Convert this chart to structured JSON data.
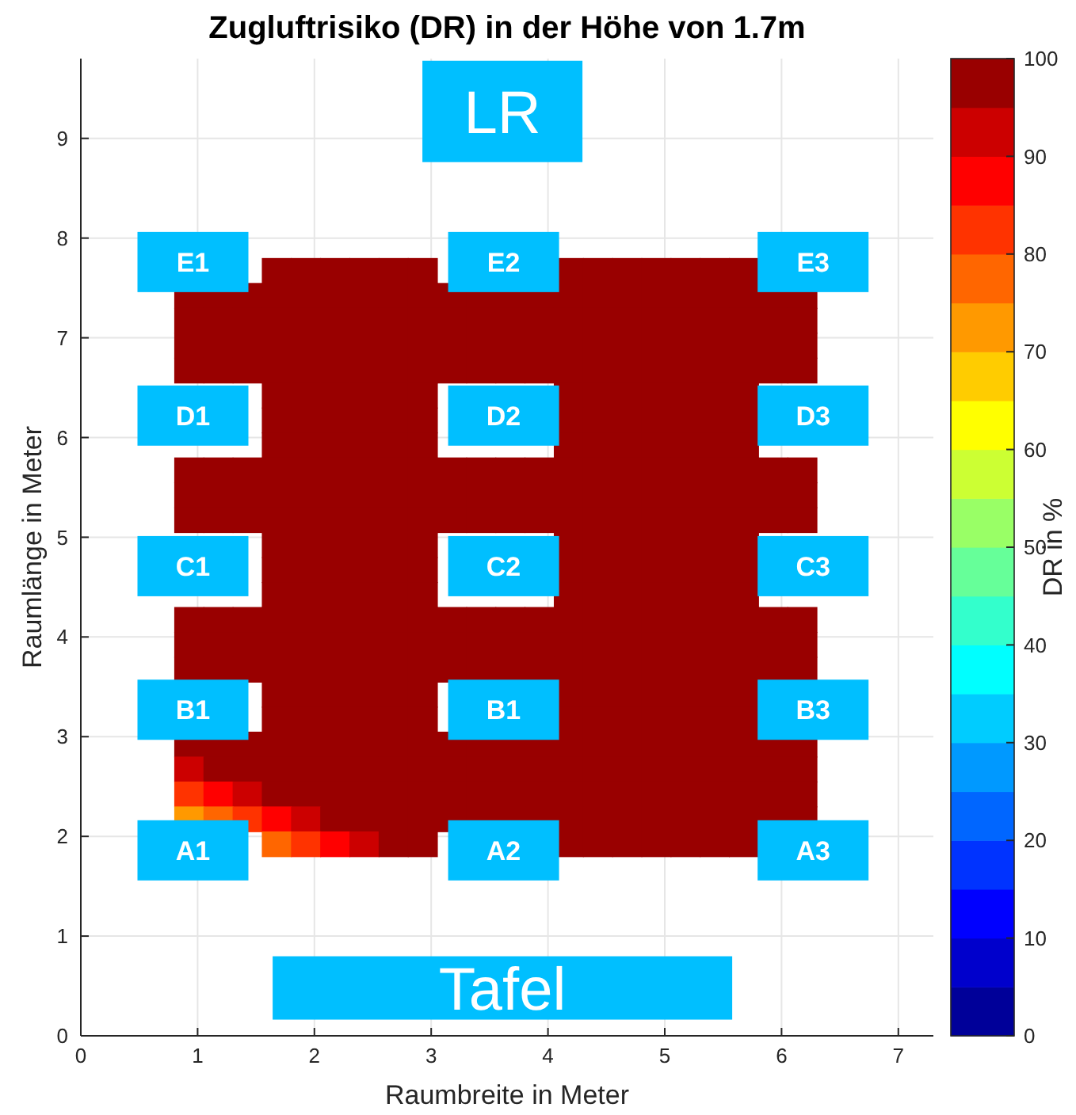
{
  "chart_data": {
    "type": "heatmap",
    "title": "Zugluftrisiko (DR) in der Höhe von 1.7m",
    "xlabel": "Raumbreite in Meter",
    "ylabel": "Raumlänge in Meter",
    "clabel": "DR in %",
    "x": [
      0.925,
      1.175,
      1.425,
      1.675,
      1.925,
      2.175,
      2.425,
      2.675,
      2.925,
      3.175,
      3.425,
      3.675,
      3.925,
      4.175,
      4.425,
      4.675,
      4.925,
      5.175,
      5.425,
      5.675,
      5.925,
      6.175
    ],
    "y": [
      7.675,
      7.425,
      7.175,
      6.925,
      6.675,
      6.425,
      6.175,
      5.925,
      5.675,
      5.425,
      5.175,
      4.925,
      4.675,
      4.425,
      4.175,
      3.925,
      3.675,
      3.425,
      3.175,
      2.925,
      2.675,
      2.425,
      2.175,
      1.925
    ],
    "cells": [
      [
        null,
        null,
        null,
        100,
        100,
        100,
        100,
        100,
        100,
        null,
        null,
        null,
        null,
        100,
        100,
        100,
        100,
        100,
        100,
        100,
        null,
        null
      ],
      [
        100,
        100,
        100,
        100,
        100,
        100,
        100,
        100,
        100,
        100,
        100,
        100,
        100,
        100,
        100,
        100,
        100,
        100,
        100,
        100,
        100,
        100
      ],
      [
        100,
        100,
        100,
        100,
        100,
        100,
        100,
        100,
        100,
        100,
        100,
        100,
        100,
        100,
        100,
        100,
        100,
        100,
        100,
        100,
        100,
        100
      ],
      [
        100,
        100,
        100,
        100,
        100,
        100,
        100,
        100,
        100,
        100,
        100,
        100,
        100,
        100,
        100,
        100,
        100,
        100,
        100,
        100,
        100,
        100
      ],
      [
        100,
        100,
        100,
        100,
        100,
        100,
        100,
        100,
        100,
        100,
        100,
        100,
        100,
        100,
        100,
        100,
        100,
        100,
        100,
        100,
        100,
        100
      ],
      [
        null,
        null,
        null,
        100,
        100,
        100,
        100,
        100,
        100,
        null,
        null,
        null,
        null,
        100,
        100,
        100,
        100,
        100,
        100,
        100,
        null,
        null
      ],
      [
        null,
        null,
        null,
        100,
        100,
        100,
        100,
        100,
        100,
        null,
        null,
        null,
        null,
        100,
        100,
        100,
        100,
        100,
        100,
        100,
        null,
        null
      ],
      [
        null,
        null,
        null,
        100,
        100,
        100,
        100,
        100,
        100,
        null,
        null,
        null,
        null,
        100,
        100,
        100,
        100,
        100,
        100,
        100,
        null,
        null
      ],
      [
        100,
        100,
        100,
        100,
        100,
        100,
        100,
        100,
        100,
        100,
        100,
        100,
        100,
        100,
        100,
        100,
        100,
        100,
        100,
        100,
        100,
        100
      ],
      [
        100,
        100,
        100,
        100,
        100,
        100,
        100,
        100,
        100,
        100,
        100,
        100,
        100,
        100,
        100,
        100,
        100,
        100,
        100,
        100,
        100,
        100
      ],
      [
        100,
        100,
        100,
        100,
        100,
        100,
        100,
        100,
        100,
        100,
        100,
        100,
        100,
        100,
        100,
        100,
        100,
        100,
        100,
        100,
        100,
        100
      ],
      [
        null,
        null,
        null,
        100,
        100,
        100,
        100,
        100,
        100,
        null,
        null,
        null,
        null,
        100,
        100,
        100,
        100,
        100,
        100,
        100,
        null,
        null
      ],
      [
        null,
        null,
        null,
        100,
        100,
        100,
        100,
        100,
        100,
        null,
        null,
        null,
        null,
        100,
        100,
        100,
        100,
        100,
        100,
        100,
        null,
        null
      ],
      [
        null,
        null,
        null,
        100,
        100,
        100,
        100,
        100,
        100,
        null,
        null,
        null,
        null,
        100,
        100,
        100,
        100,
        100,
        100,
        100,
        null,
        null
      ],
      [
        100,
        100,
        100,
        100,
        100,
        100,
        100,
        100,
        100,
        100,
        100,
        100,
        100,
        100,
        100,
        100,
        100,
        100,
        100,
        100,
        100,
        100
      ],
      [
        100,
        100,
        100,
        100,
        100,
        100,
        100,
        100,
        100,
        100,
        100,
        100,
        100,
        100,
        100,
        100,
        100,
        100,
        100,
        100,
        100,
        100
      ],
      [
        100,
        100,
        100,
        100,
        100,
        100,
        100,
        100,
        100,
        100,
        100,
        100,
        100,
        100,
        100,
        100,
        100,
        100,
        100,
        100,
        100,
        100
      ],
      [
        null,
        null,
        null,
        100,
        100,
        100,
        100,
        100,
        100,
        null,
        null,
        null,
        null,
        100,
        100,
        100,
        100,
        100,
        100,
        100,
        null,
        null
      ],
      [
        null,
        null,
        null,
        100,
        100,
        100,
        100,
        100,
        100,
        null,
        null,
        null,
        null,
        100,
        100,
        100,
        100,
        100,
        100,
        100,
        null,
        null
      ],
      [
        100,
        100,
        100,
        100,
        100,
        100,
        100,
        100,
        100,
        100,
        100,
        100,
        100,
        100,
        100,
        100,
        100,
        100,
        100,
        100,
        100,
        100
      ],
      [
        93,
        98,
        100,
        100,
        100,
        100,
        100,
        100,
        100,
        100,
        100,
        100,
        100,
        100,
        100,
        100,
        100,
        100,
        100,
        100,
        100,
        100
      ],
      [
        83,
        88,
        93,
        98,
        100,
        100,
        100,
        100,
        100,
        100,
        100,
        100,
        100,
        100,
        100,
        100,
        100,
        100,
        100,
        100,
        100,
        100
      ],
      [
        73,
        78,
        83,
        87,
        92,
        97,
        100,
        100,
        100,
        100,
        100,
        100,
        100,
        100,
        100,
        100,
        100,
        100,
        100,
        100,
        100,
        100
      ],
      [
        null,
        null,
        null,
        77,
        82,
        87,
        92,
        97,
        100,
        null,
        null,
        null,
        null,
        100,
        100,
        100,
        100,
        100,
        100,
        100,
        null,
        null
      ]
    ],
    "xlim": [
      0,
      7.3
    ],
    "xticks": [
      0,
      1,
      2,
      3,
      4,
      5,
      6,
      7
    ],
    "ylim": [
      0,
      9.8
    ],
    "yticks": [
      0,
      1,
      2,
      3,
      4,
      5,
      6,
      7,
      8,
      9
    ],
    "clim": [
      0,
      100
    ],
    "cticks": [
      0,
      10,
      20,
      30,
      40,
      50,
      60,
      70,
      80,
      90,
      100
    ],
    "grid": true,
    "annotations": [
      "LR",
      "Tafel",
      "E1",
      "E2",
      "E3",
      "D1",
      "D2",
      "D3",
      "C1",
      "C2",
      "C3",
      "B1",
      "B1",
      "B3",
      "A1",
      "A2",
      "A3"
    ]
  }
}
